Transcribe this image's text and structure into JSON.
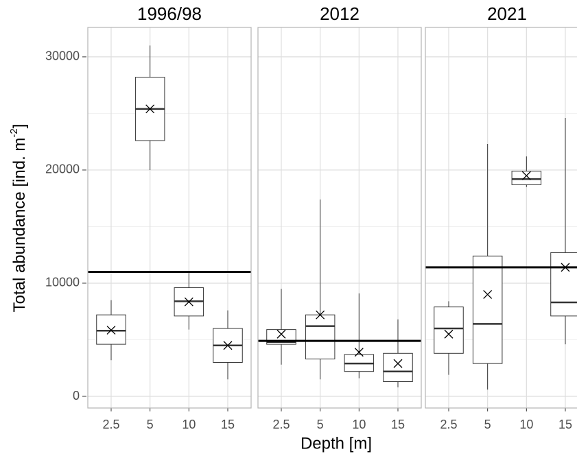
{
  "x_label": "Depth [m]",
  "y_label": {
    "text": "Total abundance [ind. m",
    "superscript": "-2",
    "suffix": "]"
  },
  "chart_data": [
    {
      "type": "box",
      "title": "1996/98",
      "categories": [
        "2.5",
        "5",
        "10",
        "15"
      ],
      "boxes": [
        {
          "low": 3200,
          "q1": 4600,
          "median": 5800,
          "q3": 7200,
          "high": 8500,
          "mean": 5850
        },
        {
          "low": 20000,
          "q1": 22600,
          "median": 25400,
          "q3": 28200,
          "high": 31000,
          "mean": 25400
        },
        {
          "low": 5900,
          "q1": 7100,
          "median": 8400,
          "q3": 9600,
          "high": 11000,
          "mean": 8350
        },
        {
          "low": 1500,
          "q1": 3000,
          "median": 4500,
          "q3": 6000,
          "high": 7600,
          "mean": 4500
        }
      ],
      "reference_line": 11000,
      "ylim": [
        -1030,
        32600
      ],
      "yticks": [
        0,
        10000,
        20000,
        30000
      ],
      "minor_yticks": [
        5000,
        15000,
        25000
      ],
      "grid": true
    },
    {
      "type": "box",
      "title": "2012",
      "categories": [
        "2.5",
        "5",
        "10",
        "15"
      ],
      "boxes": [
        {
          "low": 2800,
          "q1": 4600,
          "median": 4800,
          "q3": 5900,
          "high": 9500,
          "mean": 5500
        },
        {
          "low": 1500,
          "q1": 3300,
          "median": 6200,
          "q3": 7200,
          "high": 17400,
          "mean": 7200
        },
        {
          "low": 1600,
          "q1": 2200,
          "median": 2900,
          "q3": 3700,
          "high": 9100,
          "mean": 3900
        },
        {
          "low": 800,
          "q1": 1300,
          "median": 2200,
          "q3": 3800,
          "high": 6800,
          "mean": 2900
        }
      ],
      "reference_line": 4900
    },
    {
      "type": "box",
      "title": "2021",
      "categories": [
        "2.5",
        "5",
        "10",
        "15"
      ],
      "boxes": [
        {
          "low": 1900,
          "q1": 3800,
          "median": 6000,
          "q3": 7900,
          "high": 8400,
          "mean": 5500
        },
        {
          "low": 600,
          "q1": 2900,
          "median": 6400,
          "q3": 12400,
          "high": 22300,
          "mean": 9000
        },
        {
          "low": 18500,
          "q1": 18700,
          "median": 19200,
          "q3": 19900,
          "high": 21200,
          "mean": 19500
        },
        {
          "low": 4600,
          "q1": 7100,
          "median": 8300,
          "q3": 12700,
          "high": 24600,
          "mean": 11400
        }
      ],
      "reference_line": 11400
    }
  ]
}
